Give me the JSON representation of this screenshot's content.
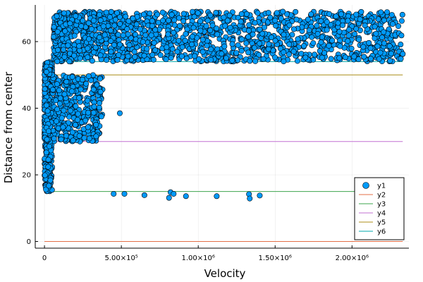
{
  "chart_data": {
    "type": "scatter",
    "xlabel": "Velocity",
    "ylabel": "Distance from center",
    "xlim": [
      -60000,
      2370000
    ],
    "ylim": [
      -2,
      71
    ],
    "grid": true,
    "legend_position": "bottom-right",
    "x_ticks": [
      {
        "value": 0,
        "label": "0"
      },
      {
        "value": 500000,
        "label": "5.00×10⁵"
      },
      {
        "value": 1000000,
        "label": "1.00×10⁶"
      },
      {
        "value": 1500000,
        "label": "1.50×10⁶"
      },
      {
        "value": 2000000,
        "label": "2.00×10⁶"
      }
    ],
    "y_ticks": [
      {
        "value": 0,
        "label": "0"
      },
      {
        "value": 20,
        "label": "20"
      },
      {
        "value": 40,
        "label": "40"
      },
      {
        "value": 60,
        "label": "60"
      }
    ],
    "series": [
      {
        "name": "y1",
        "kind": "scatter",
        "color": "#009AFA",
        "clusters": [
          {
            "x_range": [
              0,
              50000
            ],
            "y_range": [
              15,
              30
            ]
          },
          {
            "x_range": [
              0,
              380000
            ],
            "y_range": [
              30,
              50
            ]
          },
          {
            "x_range": [
              0,
              50000
            ],
            "y_range": [
              50,
              54
            ]
          },
          {
            "x_range": [
              60000,
              2330000
            ],
            "y_range": [
              54,
              69
            ]
          }
        ],
        "outliers": [
          {
            "x": 490000,
            "y": 38.5
          },
          {
            "x": 2330000,
            "y": 56.3
          },
          {
            "x": 450000,
            "y": 14.3
          },
          {
            "x": 520000,
            "y": 14.3
          },
          {
            "x": 650000,
            "y": 13.9
          },
          {
            "x": 820000,
            "y": 14.8
          },
          {
            "x": 840000,
            "y": 14.3
          },
          {
            "x": 810000,
            "y": 13.1
          },
          {
            "x": 920000,
            "y": 13.6
          },
          {
            "x": 1120000,
            "y": 13.6
          },
          {
            "x": 1330000,
            "y": 14.2
          },
          {
            "x": 1335000,
            "y": 12.9
          },
          {
            "x": 1400000,
            "y": 13.8
          }
        ]
      },
      {
        "name": "y2",
        "kind": "hline",
        "y": 0,
        "x_range": [
          0,
          2330000
        ],
        "color": "#E36F47"
      },
      {
        "name": "y3",
        "kind": "hline",
        "y": 15,
        "x_range": [
          0,
          2330000
        ],
        "color": "#3EA44E"
      },
      {
        "name": "y4",
        "kind": "hline",
        "y": 30,
        "x_range": [
          0,
          2330000
        ],
        "color": "#C271D2"
      },
      {
        "name": "y5",
        "kind": "hline",
        "y": 50,
        "x_range": [
          0,
          2330000
        ],
        "color": "#AC8D18"
      },
      {
        "name": "y6",
        "kind": "hline",
        "y": 54,
        "x_range": [
          0,
          2330000
        ],
        "color": "#00A9AD"
      }
    ]
  }
}
